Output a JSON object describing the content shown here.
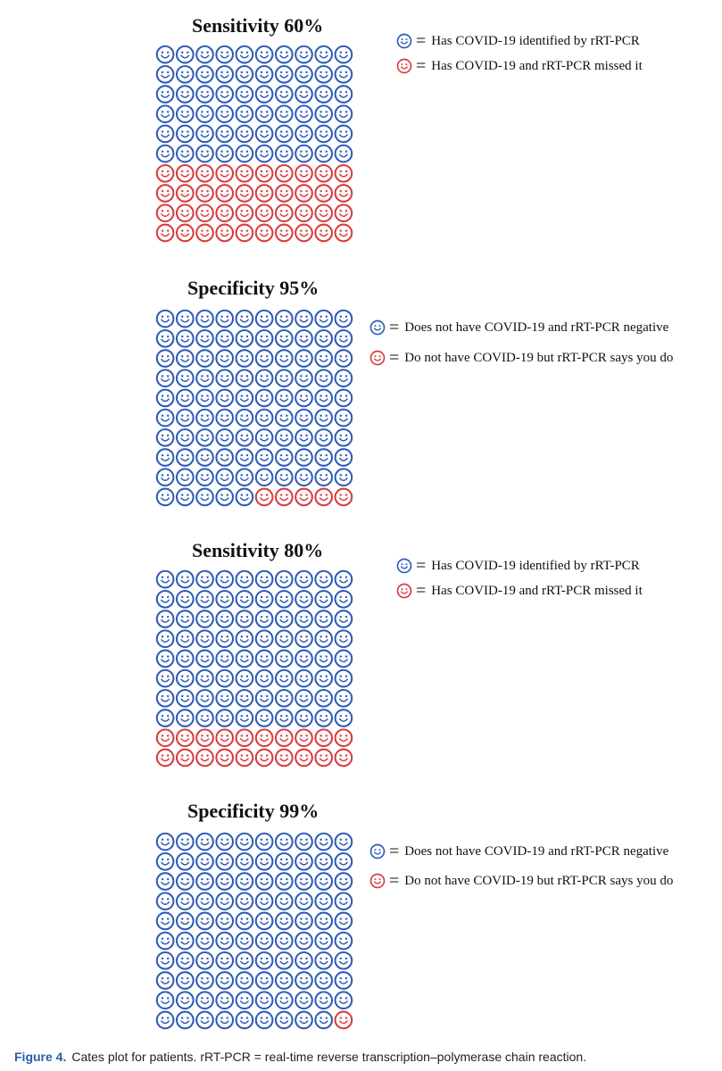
{
  "colors": {
    "positive": "#2f5bb7",
    "missed": "#d93b3b"
  },
  "chart_data": [
    {
      "type": "icon-array",
      "title": "Sensitivity 60%",
      "total": 100,
      "rows": 10,
      "cols": 10,
      "counts": {
        "blue": 60,
        "red": 40
      },
      "fill_order": "blue first (top rows), red last",
      "legend": [
        {
          "color": "blue",
          "label": "Has COVID-19 identified by rRT-PCR"
        },
        {
          "color": "red",
          "label": "Has COVID-19 and rRT-PCR missed it"
        }
      ]
    },
    {
      "type": "icon-array",
      "title": "Specificity 95%",
      "total": 100,
      "rows": 10,
      "cols": 10,
      "counts": {
        "blue": 95,
        "red": 5
      },
      "fill_order": "blue first, red last (bottom-right)",
      "legend": [
        {
          "color": "blue",
          "label": "Does not have COVID-19 and rRT-PCR negative"
        },
        {
          "color": "red",
          "label": "Do not have COVID-19 but rRT-PCR says you do"
        }
      ]
    },
    {
      "type": "icon-array",
      "title": "Sensitivity 80%",
      "total": 100,
      "rows": 10,
      "cols": 10,
      "counts": {
        "blue": 80,
        "red": 20
      },
      "fill_order": "blue first (top rows), red last",
      "legend": [
        {
          "color": "blue",
          "label": "Has COVID-19 identified by rRT-PCR"
        },
        {
          "color": "red",
          "label": "Has COVID-19 and rRT-PCR missed it"
        }
      ]
    },
    {
      "type": "icon-array",
      "title": "Specificity 99%",
      "total": 100,
      "rows": 10,
      "cols": 10,
      "counts": {
        "blue": 99,
        "red": 1
      },
      "fill_order": "blue first, red last (bottom-right)",
      "legend": [
        {
          "color": "blue",
          "label": "Does not have COVID-19 and rRT-PCR negative"
        },
        {
          "color": "red",
          "label": "Do not have COVID-19 but rRT-PCR says you do"
        }
      ]
    }
  ],
  "legend_separator": "=",
  "caption": {
    "label": "Figure 4.",
    "text": "Cates plot for patients. rRT-PCR = real-time reverse transcription–polymerase chain reaction."
  }
}
